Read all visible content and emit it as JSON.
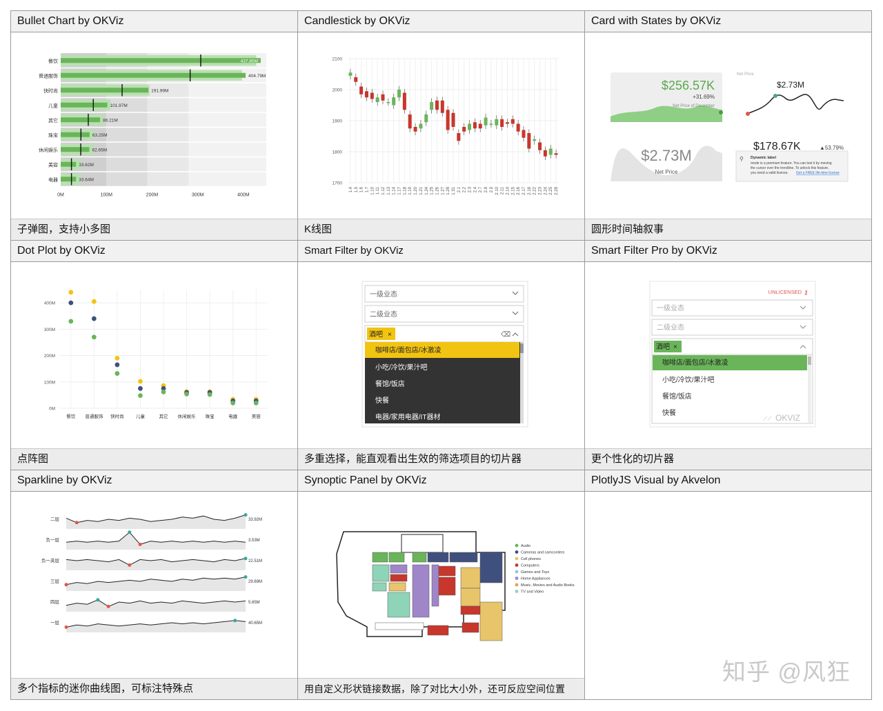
{
  "cells": [
    {
      "title": "Bullet Chart by OKViz",
      "caption": "子弹图，支持小多图"
    },
    {
      "title": "Candlestick by OKViz",
      "caption": "K线图"
    },
    {
      "title": "Card with States by OKViz",
      "caption": "圆形时间轴叙事"
    },
    {
      "title": "Dot Plot by OKViz",
      "caption": "点阵图"
    },
    {
      "title": "Smart Filter by OKViz",
      "caption": "多重选择，能直观看出生效的筛选项目的切片器"
    },
    {
      "title": "Smart Filter Pro by OKViz",
      "caption": "更个性化的切片器"
    },
    {
      "title": "Sparkline by OKViz",
      "caption": "多个指标的迷你曲线图，可标注特殊点"
    },
    {
      "title": "Synoptic Panel by OKViz",
      "caption": "用自定义形状链接数据，除了对比大小外，还可反应空间位置"
    },
    {
      "title": "PlotlyJS Visual by Akvelon",
      "caption": ""
    }
  ],
  "watermark": "知乎 @风狂",
  "colors": {
    "green": "#6ab55a",
    "red": "#c8362c",
    "yellow": "#f2c412",
    "navy": "#40507e",
    "gray": "#e6e6e6"
  },
  "chart_data": [
    {
      "type": "bar",
      "title": "",
      "categories": [
        "餐饮",
        "普通服饰",
        "快时尚",
        "儿童",
        "其它",
        "珠宝",
        "休闲娱乐",
        "美容",
        "电器"
      ],
      "values": [
        437.85,
        404.79,
        191.99,
        101.97,
        86.21,
        63.25,
        62.65,
        33.62,
        33.64
      ],
      "value_labels": [
        "437.85M",
        "404.79M",
        "191.99M",
        "101.97M",
        "86.21M",
        "63.25M",
        "62.65M",
        "33.62M",
        "33.64M"
      ],
      "x_ticks": [
        "0M",
        "100M",
        "200M",
        "300M",
        "400M"
      ],
      "xlim": [
        0,
        450
      ]
    },
    {
      "type": "candlestick",
      "y_ticks": [
        "2100",
        "2000",
        "1900",
        "1800",
        "1700"
      ],
      "ylim": [
        1700,
        2100
      ],
      "x": [
        "1.4",
        "1.5",
        "1.6",
        "1.7",
        "1.10",
        "1.11",
        "1.12",
        "1.13",
        "1.14",
        "1.17",
        "1.18",
        "1.19",
        "1.20",
        "1.21",
        "1.24",
        "1.25",
        "1.26",
        "1.27",
        "1.28",
        "1.31",
        "2.1",
        "2.2",
        "2.3",
        "2.4",
        "2.7",
        "2.8",
        "2.9",
        "2.10",
        "2.11",
        "2.14",
        "2.15",
        "2.16",
        "2.17",
        "2.18",
        "2.22",
        "2.23",
        "2.24",
        "2.25",
        "2.28"
      ]
    },
    {
      "type": "scatter",
      "categories": [
        "餐饮",
        "普通服饰",
        "快时尚",
        "儿童",
        "其它",
        "休闲娱乐",
        "珠宝",
        "电器",
        "美容"
      ],
      "y_ticks": [
        "400M",
        "300M",
        "200M",
        "100M",
        "0M"
      ],
      "ylim": [
        0,
        450
      ],
      "series": [
        {
          "values": [
            440,
            405,
            190,
            102,
            86,
            63,
            63,
            34,
            34
          ]
        },
        {
          "values": [
            400,
            340,
            165,
            75,
            75,
            60,
            60,
            28,
            28
          ]
        },
        {
          "values": [
            330,
            270,
            132,
            48,
            62,
            54,
            52,
            20,
            20
          ]
        }
      ]
    },
    {
      "type": "line",
      "series": [
        {
          "name": "二层",
          "value": "33.92M"
        },
        {
          "name": "负一层",
          "value": "3.53M"
        },
        {
          "name": "负一夹层",
          "value": "22.51M"
        },
        {
          "name": "三层",
          "value": "29.69M"
        },
        {
          "name": "四层",
          "value": "5.65M"
        },
        {
          "name": "一层",
          "value": "40.65M"
        }
      ]
    }
  ],
  "card": {
    "value1": "$256.57K",
    "pct1": "+31.69%",
    "sub1": "Net Price of December",
    "spark_label": "Net Price",
    "spark_value": "$2.73M",
    "big_value": "$2.73M",
    "big_label": "Net Price",
    "value2": "$178.67K",
    "pct2": "▲53.79%",
    "note_bold": "Dynamic label",
    "note": "mode is a premium feature. You can test it by moving the cursor over the trendline. To unlock this feature, you need a valid license.",
    "note_link": "Get a FREE life-time license"
  },
  "smart_filter": {
    "dropdown1": "一级业态",
    "dropdown2": "二级业态",
    "tag": "酒吧",
    "tag_x": "×",
    "items": [
      "咖啡店/面包店/冰激凌",
      "小吃/冷饮/果汁吧",
      "餐馆/饭店",
      "快餐",
      "电器/家用电器/IT器材"
    ]
  },
  "smart_filter_pro": {
    "unlicensed": "UNLICENSED",
    "dropdown1": "一级业态",
    "dropdown2": "二级业态",
    "tag": "酒吧",
    "tag_x": "×",
    "items": [
      "咖啡店/面包店/冰激凌",
      "小吃/冷饮/果汁吧",
      "餐馆/饭店",
      "快餐"
    ],
    "logo": "OKVIZ"
  },
  "synoptic": {
    "legend": [
      "Audio",
      "Cameras and camcorders",
      "Cell phones",
      "Computers",
      "Games and Toys",
      "Home Appliances",
      "Music, Movies and Audio Books",
      "TV and Video"
    ],
    "legend_colors": [
      "#6ab55a",
      "#40507e",
      "#e8c46a",
      "#c8362c",
      "#8fc6e0",
      "#9f86c8",
      "#e8a050",
      "#8ed4b8"
    ]
  }
}
